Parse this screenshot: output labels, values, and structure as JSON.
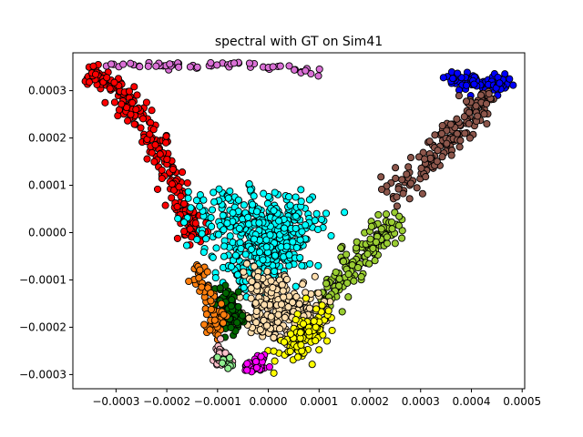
{
  "chart_data": {
    "type": "scatter",
    "title": "spectral with GT on Sim41",
    "xlabel": "",
    "ylabel": "",
    "xlim": [
      -0.000385,
      0.000505
    ],
    "ylim": [
      -0.00033,
      0.00038
    ],
    "x_ticks": [
      -0.0003,
      -0.0002,
      -0.0001,
      0.0,
      0.0001,
      0.0002,
      0.0003,
      0.0004,
      0.0005
    ],
    "x_tick_labels": [
      "−0.0003",
      "−0.0002",
      "−0.0001",
      "0.0000",
      "0.0001",
      "0.0002",
      "0.0003",
      "0.0004",
      "0.0005"
    ],
    "y_ticks": [
      -0.0003,
      -0.0002,
      -0.0001,
      0.0,
      0.0001,
      0.0002,
      0.0003
    ],
    "y_tick_labels": [
      "−0.0003",
      "−0.0002",
      "−0.0001",
      "0.0000",
      "0.0001",
      "0.0002",
      "0.0003"
    ],
    "grid": false,
    "legend": "none",
    "marker_edge_color": "#000000",
    "clusters": [
      {
        "color": "#ff0000",
        "count": 260,
        "points": [
          [
            -0.000355,
            0.00034
          ],
          [
            -0.0003,
            0.0003
          ],
          [
            -0.00025,
            0.00024
          ],
          [
            -0.00021,
            0.00016
          ],
          [
            -0.00018,
            8e-05
          ],
          [
            -0.00015,
            1e-05
          ],
          [
            -0.00014,
            -1e-05
          ]
        ],
        "spread": 1.2e-05
      },
      {
        "color": "#da70d6",
        "count": 60,
        "points": [
          [
            -0.00034,
            0.000355
          ],
          [
            -0.00025,
            0.000355
          ],
          [
            -0.00016,
            0.000352
          ],
          [
            -8e-05,
            0.000355
          ],
          [
            -3e-05,
            0.00035
          ],
          [
            4e-05,
            0.000345
          ],
          [
            0.0001,
            0.00034
          ]
        ],
        "spread": 4e-06
      },
      {
        "color": "#0000ff",
        "count": 90,
        "points": [
          [
            0.00035,
            0.000325
          ],
          [
            0.0004,
            0.00032
          ],
          [
            0.00045,
            0.000312
          ],
          [
            0.00046,
            0.00031
          ]
        ],
        "spread": 1e-05
      },
      {
        "color": "#8c564b",
        "count": 160,
        "points": [
          [
            0.00043,
            0.00029
          ],
          [
            0.00039,
            0.00024
          ],
          [
            0.00034,
            0.00018
          ],
          [
            0.00029,
            0.00012
          ],
          [
            0.00024,
            8e-05
          ]
        ],
        "spread": 1.4e-05
      },
      {
        "color": "#00ffff",
        "count": 520,
        "points": [
          [
            -0.00012,
            2e-05
          ],
          [
            -6e-05,
            4e-05
          ],
          [
            0.0,
            3e-05
          ],
          [
            5e-05,
            1e-05
          ],
          [
            -2e-05,
            -5e-05
          ],
          [
            4e-05,
            -5e-05
          ],
          [
            -8e-05,
            -8e-05
          ],
          [
            0.0001,
            4e-05
          ]
        ],
        "spread": 3e-05
      },
      {
        "color": "#9acd32",
        "count": 160,
        "points": [
          [
            0.00025,
            3e-05
          ],
          [
            0.00021,
            -2e-05
          ],
          [
            0.00017,
            -6e-05
          ],
          [
            0.00014,
            -0.0001
          ],
          [
            0.00012,
            -0.00015
          ]
        ],
        "spread": 1.4e-05
      },
      {
        "color": "#ffdead",
        "count": 260,
        "points": [
          [
            -2e-05,
            -0.0001
          ],
          [
            2e-05,
            -0.00014
          ],
          [
            6e-05,
            -0.00016
          ],
          [
            -3e-05,
            -0.00018
          ],
          [
            3e-05,
            -0.00021
          ],
          [
            9e-05,
            -0.00014
          ]
        ],
        "spread": 2.2e-05
      },
      {
        "color": "#ffff00",
        "count": 120,
        "points": [
          [
            5e-05,
            -0.00024
          ],
          [
            9e-05,
            -0.0002
          ],
          [
            3e-05,
            -0.00026
          ],
          [
            0.00011,
            -0.00016
          ]
        ],
        "spread": 1.6e-05
      },
      {
        "color": "#006400",
        "count": 90,
        "points": [
          [
            -8e-05,
            -0.00013
          ],
          [
            -8e-05,
            -0.00017
          ],
          [
            -7e-05,
            -0.0002
          ]
        ],
        "spread": 1.2e-05
      },
      {
        "color": "#ff7f0e",
        "count": 70,
        "points": [
          [
            -0.00014,
            -7e-05
          ],
          [
            -0.00012,
            -0.00013
          ],
          [
            -0.0001,
            -0.00018
          ],
          [
            -0.00011,
            -0.00021
          ]
        ],
        "spread": 1e-05
      },
      {
        "color": "#ff00ff",
        "count": 40,
        "points": [
          [
            -4e-05,
            -0.00028
          ],
          [
            -2e-05,
            -0.00028
          ],
          [
            -1e-05,
            -0.000275
          ]
        ],
        "spread": 7e-06
      },
      {
        "color": "#ffc0cb",
        "count": 30,
        "points": [
          [
            -0.0001,
            -0.00023
          ],
          [
            -0.0001,
            -0.00026
          ],
          [
            -8e-05,
            -0.00028
          ]
        ],
        "spread": 8e-06
      },
      {
        "color": "#90ee90",
        "count": 10,
        "points": [
          [
            -9e-05,
            -0.00027
          ],
          [
            -7e-05,
            -0.00028
          ]
        ],
        "spread": 6e-06
      }
    ]
  }
}
